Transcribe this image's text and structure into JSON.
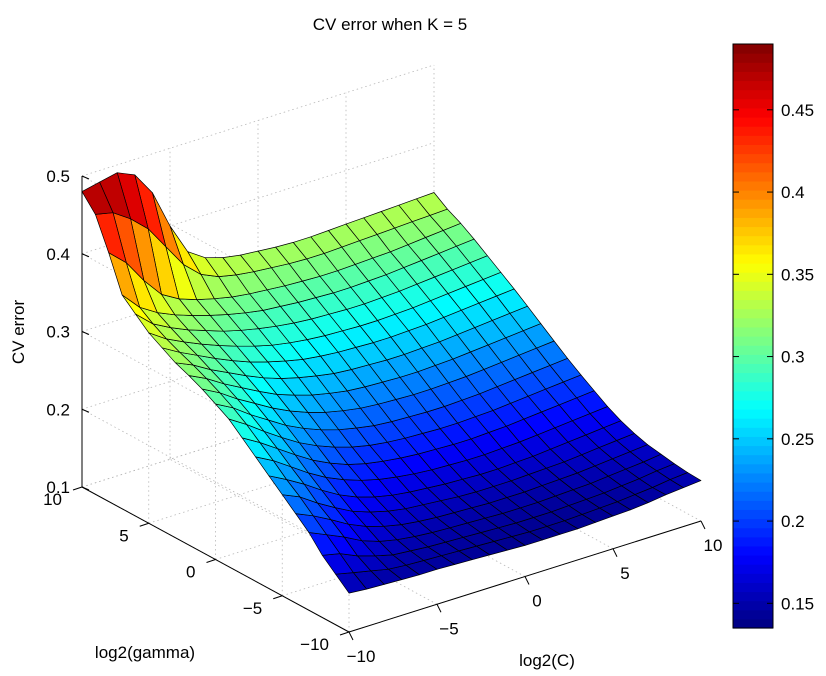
{
  "chart_data": {
    "type": "surface",
    "title": "CV error when K = 5",
    "xlabel": "log2(C)",
    "ylabel": "log2(gamma)",
    "zlabel": "CV error",
    "x_ticks": [
      "−10",
      "−5",
      "0",
      "5",
      "10"
    ],
    "y_ticks": [
      "−10",
      "−5",
      "0",
      "5",
      "10"
    ],
    "z_ticks": [
      "0.1",
      "0.2",
      "0.3",
      "0.4",
      "0.5"
    ],
    "xlim": [
      -10,
      10
    ],
    "ylim": [
      -10,
      10
    ],
    "zlim": [
      0.1,
      0.5
    ],
    "grid": true,
    "colormap": "jet",
    "colorbar": {
      "range": [
        0.135,
        0.49
      ],
      "ticks": [
        "0.15",
        "0.2",
        "0.25",
        "0.3",
        "0.35",
        "0.4",
        "0.45"
      ]
    },
    "x_values": [
      -10,
      -9,
      -8,
      -7,
      -6,
      -5,
      -4,
      -3,
      -2,
      -1,
      0,
      1,
      2,
      3,
      4,
      5,
      6,
      7,
      8,
      9,
      10
    ],
    "y_values": [
      -10,
      -9,
      -8,
      -7,
      -6,
      -5,
      -4,
      -3,
      -2,
      -1,
      0,
      1,
      2,
      3,
      4,
      5,
      6,
      7,
      8,
      9,
      10
    ],
    "z_values": [
      [
        0.15,
        0.148,
        0.147,
        0.146,
        0.145,
        0.145,
        0.144,
        0.143,
        0.142,
        0.141,
        0.14,
        0.14,
        0.14,
        0.14,
        0.141,
        0.142,
        0.143,
        0.145,
        0.148,
        0.15,
        0.152
      ],
      [
        0.165,
        0.16,
        0.155,
        0.15,
        0.148,
        0.147,
        0.146,
        0.145,
        0.144,
        0.143,
        0.142,
        0.141,
        0.141,
        0.141,
        0.142,
        0.143,
        0.144,
        0.146,
        0.148,
        0.151,
        0.153
      ],
      [
        0.18,
        0.175,
        0.165,
        0.158,
        0.152,
        0.15,
        0.148,
        0.147,
        0.146,
        0.145,
        0.144,
        0.143,
        0.143,
        0.143,
        0.144,
        0.145,
        0.146,
        0.148,
        0.15,
        0.153,
        0.155
      ],
      [
        0.2,
        0.19,
        0.18,
        0.168,
        0.16,
        0.155,
        0.152,
        0.15,
        0.149,
        0.148,
        0.147,
        0.146,
        0.146,
        0.146,
        0.147,
        0.148,
        0.149,
        0.151,
        0.153,
        0.155,
        0.158
      ],
      [
        0.215,
        0.205,
        0.193,
        0.18,
        0.17,
        0.163,
        0.158,
        0.155,
        0.153,
        0.152,
        0.151,
        0.15,
        0.15,
        0.15,
        0.151,
        0.152,
        0.153,
        0.155,
        0.157,
        0.159,
        0.161
      ],
      [
        0.23,
        0.22,
        0.205,
        0.192,
        0.18,
        0.172,
        0.166,
        0.162,
        0.16,
        0.158,
        0.156,
        0.155,
        0.155,
        0.155,
        0.156,
        0.157,
        0.158,
        0.16,
        0.162,
        0.164,
        0.166
      ],
      [
        0.245,
        0.233,
        0.22,
        0.205,
        0.192,
        0.182,
        0.175,
        0.17,
        0.167,
        0.165,
        0.163,
        0.162,
        0.161,
        0.161,
        0.162,
        0.163,
        0.165,
        0.167,
        0.169,
        0.171,
        0.173
      ],
      [
        0.26,
        0.248,
        0.233,
        0.218,
        0.205,
        0.195,
        0.187,
        0.181,
        0.177,
        0.174,
        0.172,
        0.171,
        0.17,
        0.17,
        0.171,
        0.172,
        0.174,
        0.176,
        0.178,
        0.18,
        0.182
      ],
      [
        0.275,
        0.262,
        0.247,
        0.232,
        0.218,
        0.207,
        0.198,
        0.192,
        0.188,
        0.185,
        0.183,
        0.182,
        0.181,
        0.181,
        0.182,
        0.183,
        0.185,
        0.187,
        0.189,
        0.191,
        0.193
      ],
      [
        0.29,
        0.276,
        0.26,
        0.245,
        0.231,
        0.22,
        0.211,
        0.204,
        0.199,
        0.196,
        0.194,
        0.193,
        0.192,
        0.192,
        0.193,
        0.194,
        0.196,
        0.198,
        0.2,
        0.202,
        0.204
      ],
      [
        0.3,
        0.288,
        0.272,
        0.258,
        0.244,
        0.233,
        0.224,
        0.217,
        0.212,
        0.208,
        0.206,
        0.205,
        0.204,
        0.204,
        0.205,
        0.206,
        0.208,
        0.21,
        0.212,
        0.214,
        0.216
      ],
      [
        0.31,
        0.298,
        0.283,
        0.27,
        0.257,
        0.246,
        0.237,
        0.23,
        0.225,
        0.221,
        0.219,
        0.218,
        0.217,
        0.217,
        0.218,
        0.219,
        0.221,
        0.223,
        0.225,
        0.227,
        0.229
      ],
      [
        0.318,
        0.307,
        0.293,
        0.281,
        0.269,
        0.258,
        0.25,
        0.243,
        0.238,
        0.234,
        0.232,
        0.231,
        0.23,
        0.23,
        0.231,
        0.232,
        0.234,
        0.236,
        0.238,
        0.24,
        0.242
      ],
      [
        0.325,
        0.315,
        0.302,
        0.291,
        0.28,
        0.27,
        0.262,
        0.256,
        0.251,
        0.247,
        0.245,
        0.244,
        0.243,
        0.243,
        0.244,
        0.245,
        0.247,
        0.249,
        0.251,
        0.253,
        0.255
      ],
      [
        0.335,
        0.322,
        0.311,
        0.3,
        0.29,
        0.281,
        0.274,
        0.268,
        0.263,
        0.26,
        0.258,
        0.257,
        0.256,
        0.256,
        0.257,
        0.258,
        0.26,
        0.262,
        0.264,
        0.266,
        0.268
      ],
      [
        0.345,
        0.33,
        0.319,
        0.309,
        0.3,
        0.292,
        0.285,
        0.279,
        0.275,
        0.272,
        0.27,
        0.269,
        0.268,
        0.268,
        0.269,
        0.27,
        0.272,
        0.274,
        0.276,
        0.278,
        0.28
      ],
      [
        0.36,
        0.34,
        0.328,
        0.318,
        0.31,
        0.302,
        0.296,
        0.291,
        0.287,
        0.284,
        0.282,
        0.281,
        0.28,
        0.28,
        0.281,
        0.282,
        0.284,
        0.286,
        0.288,
        0.29,
        0.292
      ],
      [
        0.375,
        0.352,
        0.338,
        0.328,
        0.32,
        0.313,
        0.307,
        0.302,
        0.298,
        0.296,
        0.294,
        0.293,
        0.292,
        0.292,
        0.293,
        0.294,
        0.296,
        0.298,
        0.3,
        0.302,
        0.304
      ],
      [
        0.42,
        0.4,
        0.37,
        0.345,
        0.332,
        0.324,
        0.318,
        0.313,
        0.31,
        0.308,
        0.306,
        0.305,
        0.304,
        0.304,
        0.305,
        0.306,
        0.307,
        0.309,
        0.311,
        0.313,
        0.315
      ],
      [
        0.46,
        0.455,
        0.44,
        0.42,
        0.39,
        0.36,
        0.34,
        0.33,
        0.325,
        0.322,
        0.32,
        0.318,
        0.317,
        0.317,
        0.318,
        0.319,
        0.32,
        0.321,
        0.322,
        0.323,
        0.324
      ],
      [
        0.48,
        0.485,
        0.49,
        0.48,
        0.45,
        0.4,
        0.36,
        0.345,
        0.338,
        0.334,
        0.332,
        0.33,
        0.329,
        0.329,
        0.33,
        0.331,
        0.332,
        0.333,
        0.334,
        0.335,
        0.336
      ]
    ]
  }
}
